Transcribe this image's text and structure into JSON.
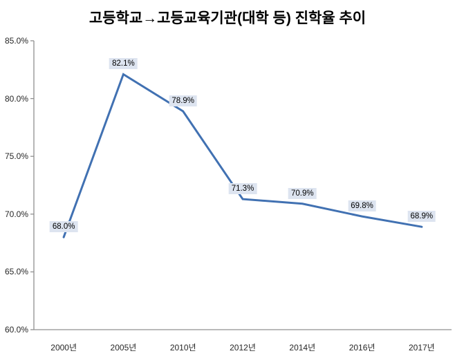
{
  "title": "고등학교→고등교육기관(대학 등) 진학율 추이",
  "chart_data": {
    "type": "line",
    "title": "고등학교→고등교육기관(대학 등) 진학율 추이",
    "categories": [
      "2000년",
      "2005년",
      "2010년",
      "2012년",
      "2014년",
      "2016년",
      "2017년"
    ],
    "series": [
      {
        "name": "진학율",
        "values": [
          68.0,
          82.1,
          78.9,
          71.3,
          70.9,
          69.8,
          68.9
        ],
        "data_labels": [
          "68.0%",
          "82.1%",
          "78.9%",
          "71.3%",
          "70.9%",
          "69.8%",
          "68.9%"
        ]
      }
    ],
    "xlabel": "",
    "ylabel": "",
    "ylim": [
      60,
      85
    ],
    "y_tick_values": [
      85,
      80,
      75,
      70,
      65,
      60
    ],
    "y_tick_labels": [
      "85.0%",
      "80.0%",
      "75.0%",
      "70.0%",
      "65.0%",
      "60.0%"
    ],
    "grid": false,
    "legend_position": "none",
    "colors": {
      "line": "#4171b2",
      "data_label_bg": "#dde4f0",
      "data_label_text": "#000000",
      "axis": "#8f8f8f",
      "tick_text": "#262626",
      "background": "#ffffff"
    }
  }
}
